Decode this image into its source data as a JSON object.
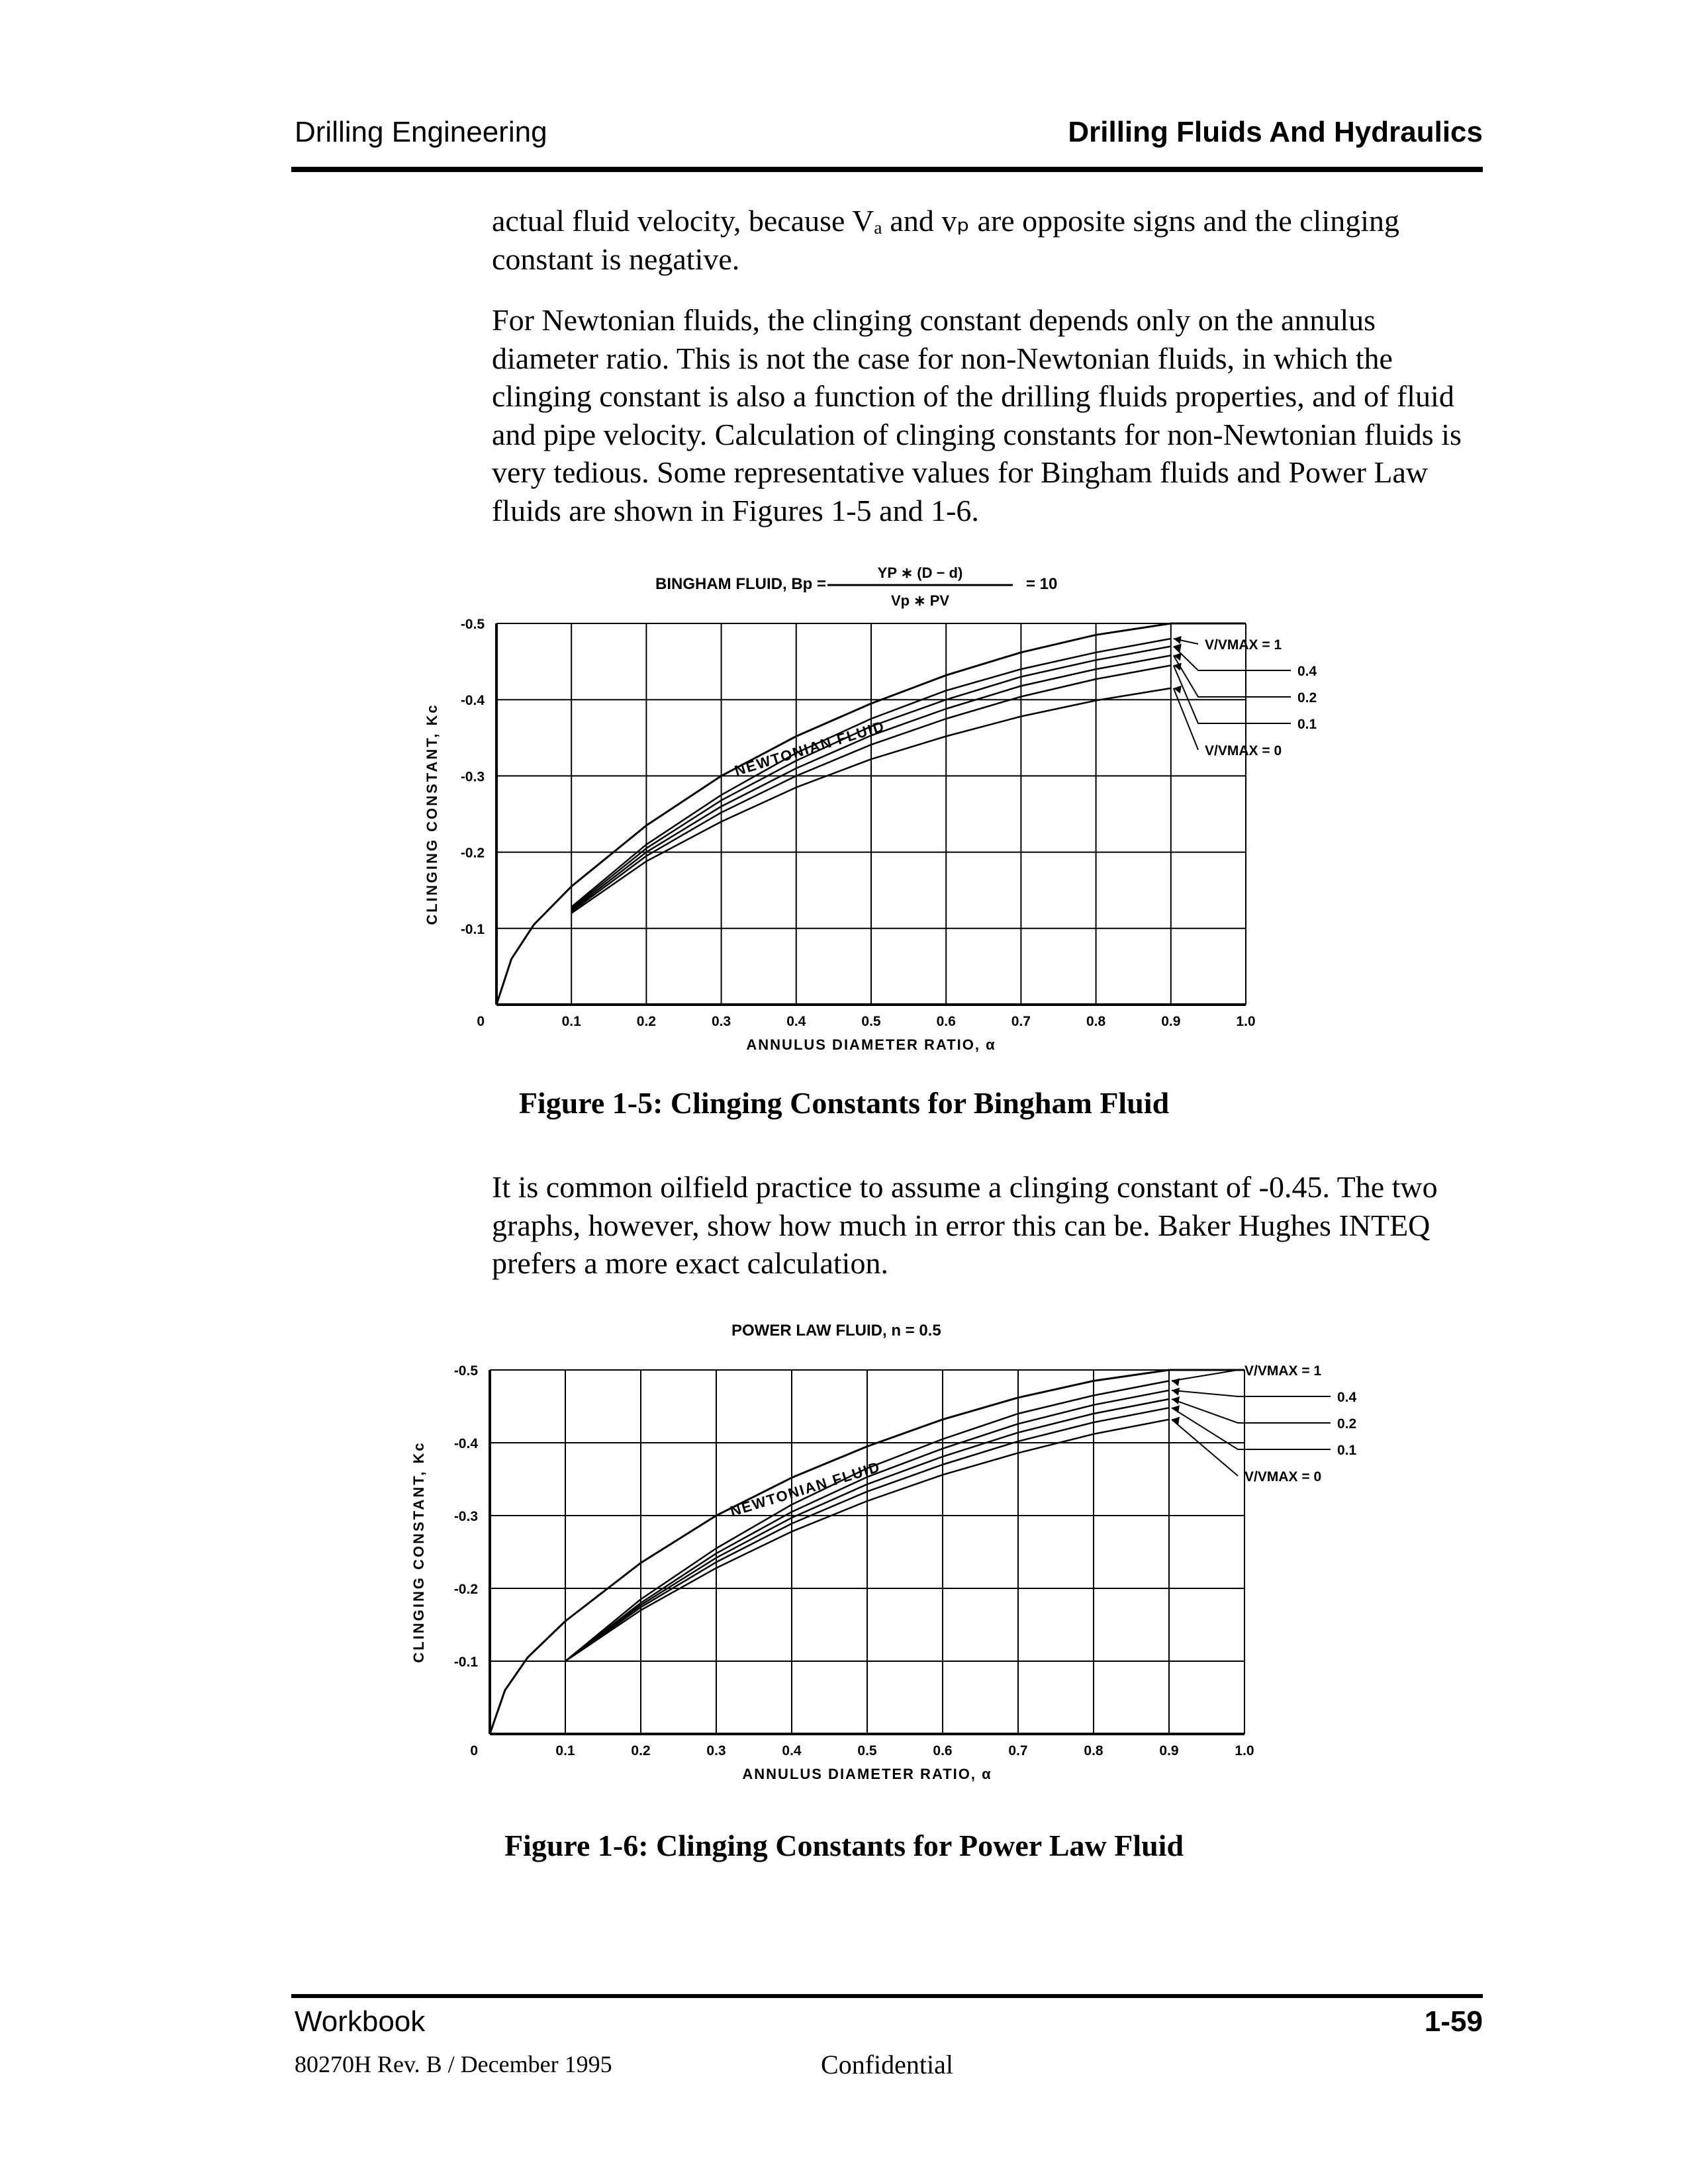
{
  "header": {
    "left": "Drilling Engineering",
    "right": "Drilling Fluids And Hydraulics"
  },
  "paragraphs": {
    "p1": "actual fluid velocity, because Vₐ and vₚ are opposite signs and the clinging constant is negative.",
    "p2": "For Newtonian fluids, the clinging constant depends only on the annulus diameter ratio. This is not the case for non-Newtonian fluids, in which the clinging constant is also a function of the drilling fluids properties, and of fluid and pipe velocity. Calculation of clinging constants for non-Newtonian fluids is very tedious. Some representative values for Bingham fluids and Power Law fluids are shown in Figures 1-5 and 1-6.",
    "p3": "It is common oilfield practice to assume a clinging constant of -0.45. The two graphs, however, show how much in error this can be. Baker Hughes INTEQ prefers a more exact calculation."
  },
  "chart_data": [
    {
      "type": "line",
      "title_prefix": "BINGHAM FLUID, Bp =",
      "title_numerator": "YP ∗ (D − d)",
      "title_denominator": "Vp ∗ PV",
      "title_suffix": "= 10",
      "xlabel": "ANNULUS DIAMETER RATIO, α",
      "ylabel": "CLINGING CONSTANT, Kc",
      "xlim": [
        0,
        1.0
      ],
      "ylim": [
        0,
        -0.5
      ],
      "x_ticks": [
        "0.1",
        "0.2",
        "0.3",
        "0.4",
        "0.5",
        "0.6",
        "0.7",
        "0.8",
        "0.9",
        "1.0"
      ],
      "y_ticks": [
        "-0.5",
        "-0.4",
        "-0.3",
        "-0.2",
        "-0.1",
        "0"
      ],
      "grid": true,
      "curve_label": "NEWTONIAN FLUID",
      "callouts": [
        "V/VMAX = 1",
        "0.4",
        "0.2",
        "0.1",
        "V/VMAX = 0"
      ],
      "series": [
        {
          "name": "NEWTONIAN FLUID",
          "x": [
            0.0,
            0.02,
            0.05,
            0.1,
            0.2,
            0.3,
            0.4,
            0.5,
            0.6,
            0.7,
            0.8,
            0.9,
            1.0
          ],
          "y": [
            0.0,
            -0.06,
            -0.105,
            -0.155,
            -0.235,
            -0.3,
            -0.352,
            -0.395,
            -0.432,
            -0.462,
            -0.485,
            -0.5,
            -0.5
          ]
        },
        {
          "name": "V/VMAX = 1",
          "x": [
            0.1,
            0.2,
            0.3,
            0.4,
            0.5,
            0.6,
            0.7,
            0.8,
            0.9
          ],
          "y": [
            -0.128,
            -0.21,
            -0.275,
            -0.33,
            -0.375,
            -0.412,
            -0.44,
            -0.462,
            -0.48
          ]
        },
        {
          "name": "0.4",
          "x": [
            0.1,
            0.2,
            0.3,
            0.4,
            0.5,
            0.6,
            0.7,
            0.8,
            0.9
          ],
          "y": [
            -0.126,
            -0.205,
            -0.268,
            -0.32,
            -0.365,
            -0.4,
            -0.43,
            -0.452,
            -0.47
          ]
        },
        {
          "name": "0.2",
          "x": [
            0.1,
            0.2,
            0.3,
            0.4,
            0.5,
            0.6,
            0.7,
            0.8,
            0.9
          ],
          "y": [
            -0.124,
            -0.2,
            -0.26,
            -0.31,
            -0.353,
            -0.388,
            -0.418,
            -0.44,
            -0.458
          ]
        },
        {
          "name": "0.1",
          "x": [
            0.1,
            0.2,
            0.3,
            0.4,
            0.5,
            0.6,
            0.7,
            0.8,
            0.9
          ],
          "y": [
            -0.122,
            -0.195,
            -0.252,
            -0.3,
            -0.341,
            -0.375,
            -0.404,
            -0.427,
            -0.445
          ]
        },
        {
          "name": "V/VMAX = 0",
          "x": [
            0.1,
            0.2,
            0.3,
            0.4,
            0.5,
            0.6,
            0.7,
            0.8,
            0.9
          ],
          "y": [
            -0.12,
            -0.188,
            -0.24,
            -0.285,
            -0.322,
            -0.352,
            -0.378,
            -0.399,
            -0.415
          ]
        }
      ]
    },
    {
      "type": "line",
      "title": "POWER LAW FLUID, n = 0.5",
      "xlabel": "ANNULUS DIAMETER RATIO, α",
      "ylabel": "CLINGING CONSTANT, Kc",
      "xlim": [
        0,
        1.0
      ],
      "ylim": [
        0,
        -0.5
      ],
      "x_ticks": [
        "0.1",
        "0.2",
        "0.3",
        "0.4",
        "0.5",
        "0.6",
        "0.7",
        "0.8",
        "0.9",
        "1.0"
      ],
      "y_ticks": [
        "-0.5",
        "-0.4",
        "-0.3",
        "-0.2",
        "-0.1",
        "0"
      ],
      "grid": true,
      "curve_label": "NEWTONIAN FLUID",
      "callouts": [
        "V/VMAX = 1",
        "0.4",
        "0.2",
        "0.1",
        "V/VMAX = 0"
      ],
      "series": [
        {
          "name": "NEWTONIAN FLUID",
          "x": [
            0.0,
            0.02,
            0.05,
            0.1,
            0.2,
            0.3,
            0.4,
            0.5,
            0.6,
            0.7,
            0.8,
            0.9,
            1.0
          ],
          "y": [
            0.0,
            -0.06,
            -0.105,
            -0.155,
            -0.235,
            -0.3,
            -0.352,
            -0.395,
            -0.432,
            -0.462,
            -0.485,
            -0.5,
            -0.5
          ]
        },
        {
          "name": "V/VMAX = 1",
          "x": [
            0.1,
            0.2,
            0.3,
            0.4,
            0.5,
            0.6,
            0.7,
            0.8,
            0.9
          ],
          "y": [
            -0.1,
            -0.185,
            -0.255,
            -0.315,
            -0.365,
            -0.405,
            -0.44,
            -0.465,
            -0.485
          ]
        },
        {
          "name": "0.4",
          "x": [
            0.1,
            0.2,
            0.3,
            0.4,
            0.5,
            0.6,
            0.7,
            0.8,
            0.9
          ],
          "y": [
            -0.1,
            -0.18,
            -0.248,
            -0.305,
            -0.353,
            -0.392,
            -0.426,
            -0.452,
            -0.472
          ]
        },
        {
          "name": "0.2",
          "x": [
            0.1,
            0.2,
            0.3,
            0.4,
            0.5,
            0.6,
            0.7,
            0.8,
            0.9
          ],
          "y": [
            -0.1,
            -0.177,
            -0.242,
            -0.297,
            -0.343,
            -0.381,
            -0.414,
            -0.44,
            -0.46
          ]
        },
        {
          "name": "0.1",
          "x": [
            0.1,
            0.2,
            0.3,
            0.4,
            0.5,
            0.6,
            0.7,
            0.8,
            0.9
          ],
          "y": [
            -0.1,
            -0.174,
            -0.236,
            -0.289,
            -0.333,
            -0.37,
            -0.402,
            -0.428,
            -0.448
          ]
        },
        {
          "name": "V/VMAX = 0",
          "x": [
            0.1,
            0.2,
            0.3,
            0.4,
            0.5,
            0.6,
            0.7,
            0.8,
            0.9
          ],
          "y": [
            -0.1,
            -0.17,
            -0.228,
            -0.278,
            -0.32,
            -0.356,
            -0.386,
            -0.412,
            -0.432
          ]
        }
      ]
    }
  ],
  "captions": {
    "fig1": "Figure 1-5: Clinging Constants for Bingham Fluid",
    "fig2": "Figure 1-6: Clinging Constants for Power Law Fluid"
  },
  "footer": {
    "left": "Workbook",
    "page": "1-59",
    "revision": "80270H Rev. B / December 1995",
    "confidential": "Confidential"
  }
}
